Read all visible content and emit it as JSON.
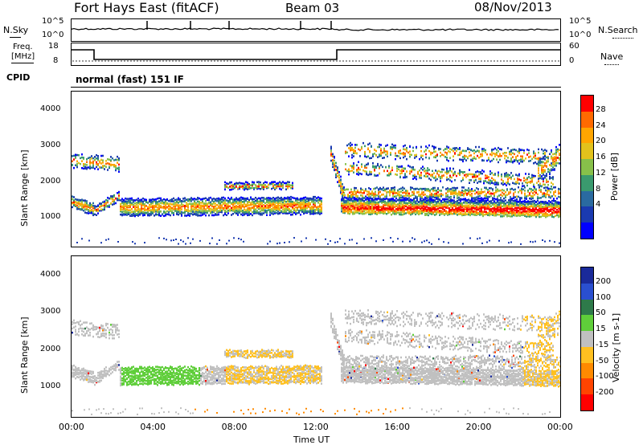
{
  "header": {
    "station": "Fort Hays East (fitACF)",
    "beam": "Beam 03",
    "date": "08/Nov/2013"
  },
  "top_panels": {
    "noise_left_label": "N.Sky",
    "noise_right_label": "N.Search",
    "noise_ticks": [
      "10^5",
      "10^0"
    ],
    "freq_label_1": "Freq.",
    "freq_label_2": "[MHz]",
    "freq_ticks": [
      "18",
      "8"
    ],
    "nave_label": "Nave",
    "nave_ticks": [
      "60",
      "0"
    ],
    "cpid_label": "CPID",
    "cpid_text": "normal (fast) 151 IF"
  },
  "chart_data": [
    {
      "type": "heatmap",
      "name": "power",
      "ylabel": "Slant Range [km]",
      "xlabel": "",
      "y_ticks": [
        1000,
        2000,
        3000,
        4000
      ],
      "ylim": [
        180,
        4500
      ],
      "colorbar_label": "Power [dB]",
      "colorbar_ticks": [
        "28",
        "24",
        "20",
        "16",
        "12",
        "8",
        "4"
      ],
      "colorbar_colors": [
        "#ff0000",
        "#ff6a00",
        "#ffa500",
        "#e2c21c",
        "#87c04a",
        "#3a9a6e",
        "#2a6aa0",
        "#1a3ab0",
        "#0000ff"
      ]
    },
    {
      "type": "heatmap",
      "name": "velocity",
      "ylabel": "Slant Range [km]",
      "xlabel": "Time UT",
      "x_ticks": [
        "00:00",
        "04:00",
        "08:00",
        "12:00",
        "16:00",
        "20:00",
        "00:00"
      ],
      "y_ticks": [
        1000,
        2000,
        3000,
        4000
      ],
      "ylim": [
        180,
        4500
      ],
      "colorbar_label": "Velocity [m s-1]",
      "colorbar_ticks": [
        "200",
        "100",
        "50",
        "15",
        "-15",
        "-50",
        "-100",
        "-200"
      ],
      "colorbar_colors": [
        "#1a2a9a",
        "#2a4fd0",
        "#2e7a4a",
        "#5fce3a",
        "#c0c0c0",
        "#ffc020",
        "#ff8a00",
        "#ff4400",
        "#ff0000"
      ]
    }
  ]
}
